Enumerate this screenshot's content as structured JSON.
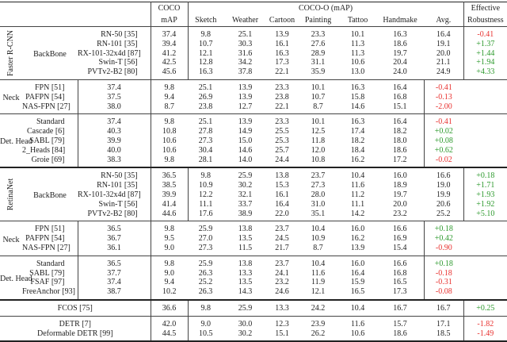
{
  "header": {
    "coco": [
      "COCO",
      "mAP"
    ],
    "coco_o": "COCO-O (mAP)",
    "columns": [
      "Sketch",
      "Weather",
      "Cartoon",
      "Painting",
      "Tattoo",
      "Handmake",
      "Avg."
    ],
    "er": [
      "Effective",
      "Robustness"
    ]
  },
  "colors": {
    "positive": "#2e9a2e",
    "negative": "#e8312f"
  },
  "sections": [
    {
      "detector": "Faster R-CNN",
      "groups": [
        {
          "name": "BackBone",
          "rows": [
            [
              "RN-50 [35]",
              "37.4",
              "9.8",
              "25.1",
              "13.9",
              "23.3",
              "10.1",
              "16.3",
              "16.4",
              "-0.41"
            ],
            [
              "RN-101 [35]",
              "39.4",
              "10.7",
              "30.3",
              "16.1",
              "27.6",
              "11.3",
              "18.6",
              "19.1",
              "+1.37"
            ],
            [
              "RX-101-32x4d [87]",
              "41.2",
              "12.1",
              "31.6",
              "16.3",
              "28.9",
              "11.3",
              "19.7",
              "20.0",
              "+1.44"
            ],
            [
              "Swin-T [56]",
              "42.5",
              "12.8",
              "34.2",
              "17.3",
              "31.1",
              "10.6",
              "20.4",
              "21.1",
              "+1.94"
            ],
            [
              "PVTv2-B2 [80]",
              "45.6",
              "16.3",
              "37.8",
              "22.1",
              "35.9",
              "13.0",
              "24.0",
              "24.9",
              "+4.33"
            ]
          ]
        },
        {
          "name": "Neck",
          "rows": [
            [
              "FPN [51]",
              "37.4",
              "9.8",
              "25.1",
              "13.9",
              "23.3",
              "10.1",
              "16.3",
              "16.4",
              "-0.41"
            ],
            [
              "PAFPN [54]",
              "37.5",
              "9.4",
              "26.9",
              "13.9",
              "23.8",
              "10.7",
              "15.8",
              "16.8",
              "-0.13"
            ],
            [
              "NAS-FPN [27]",
              "38.0",
              "8.7",
              "23.8",
              "12.7",
              "22.1",
              "8.7",
              "14.6",
              "15.1",
              "-2.00"
            ]
          ]
        },
        {
          "name": "Det. Head",
          "rows": [
            [
              "Standard",
              "37.4",
              "9.8",
              "25.1",
              "13.9",
              "23.3",
              "10.1",
              "16.3",
              "16.4",
              "-0.41"
            ],
            [
              "Cascade [6]",
              "40.3",
              "10.8",
              "27.8",
              "14.9",
              "25.5",
              "12.5",
              "17.4",
              "18.2",
              "+0.02"
            ],
            [
              "SABL [79]",
              "39.9",
              "10.6",
              "27.3",
              "15.0",
              "25.3",
              "11.8",
              "18.2",
              "18.0",
              "+0.08"
            ],
            [
              "2_Heads [84]",
              "40.0",
              "10.6",
              "30.4",
              "14.6",
              "25.7",
              "12.0",
              "18.4",
              "18.6",
              "+0.62"
            ],
            [
              "Groie [69]",
              "38.3",
              "9.8",
              "28.1",
              "14.0",
              "24.4",
              "10.8",
              "16.2",
              "17.2",
              "-0.02"
            ]
          ]
        }
      ]
    },
    {
      "detector": "RetinaNet",
      "groups": [
        {
          "name": "BackBone",
          "rows": [
            [
              "RN-50 [35]",
              "36.5",
              "9.8",
              "25.9",
              "13.8",
              "23.7",
              "10.4",
              "16.0",
              "16.6",
              "+0.18"
            ],
            [
              "RN-101 [35]",
              "38.5",
              "10.9",
              "30.2",
              "15.3",
              "27.3",
              "11.6",
              "18.9",
              "19.0",
              "+1.71"
            ],
            [
              "RX-101-32x4d [87]",
              "39.9",
              "12.2",
              "32.1",
              "16.1",
              "28.0",
              "11.2",
              "19.7",
              "19.9",
              "+1.93"
            ],
            [
              "Swin-T [56]",
              "41.4",
              "11.1",
              "33.7",
              "16.4",
              "31.0",
              "11.1",
              "20.0",
              "20.6",
              "+1.92"
            ],
            [
              "PVTv2-B2 [80]",
              "44.6",
              "17.6",
              "38.9",
              "22.0",
              "35.1",
              "14.2",
              "23.2",
              "25.2",
              "+5.10"
            ]
          ]
        },
        {
          "name": "Neck",
          "rows": [
            [
              "FPN [51]",
              "36.5",
              "9.8",
              "25.9",
              "13.8",
              "23.7",
              "10.4",
              "16.0",
              "16.6",
              "+0.18"
            ],
            [
              "PAFPN [54]",
              "36.7",
              "9.5",
              "27.0",
              "13.5",
              "24.5",
              "10.9",
              "16.2",
              "16.9",
              "+0.42"
            ],
            [
              "NAS-FPN [27]",
              "36.1",
              "9.0",
              "27.3",
              "11.5",
              "21.7",
              "8.7",
              "13.9",
              "15.4",
              "-0.90"
            ]
          ]
        },
        {
          "name": "Det. Head",
          "rows": [
            [
              "Standard",
              "36.5",
              "9.8",
              "25.9",
              "13.8",
              "23.7",
              "10.4",
              "16.0",
              "16.6",
              "+0.18"
            ],
            [
              "SABL [79]",
              "37.7",
              "9.0",
              "26.3",
              "13.3",
              "24.1",
              "11.6",
              "16.4",
              "16.8",
              "-0.18"
            ],
            [
              "FSAF [97]",
              "37.4",
              "9.4",
              "25.2",
              "13.5",
              "23.2",
              "11.9",
              "15.9",
              "16.5",
              "-0.31"
            ],
            [
              "FreeAnchor [93]",
              "38.7",
              "10.2",
              "26.3",
              "14.3",
              "24.6",
              "12.1",
              "16.5",
              "17.3",
              "-0.08"
            ]
          ]
        }
      ]
    }
  ],
  "standalone": [
    {
      "rows": [
        [
          "FCOS [75]",
          "36.6",
          "9.8",
          "25.9",
          "13.3",
          "24.2",
          "10.4",
          "16.7",
          "16.7",
          "+0.25"
        ]
      ]
    },
    {
      "rows": [
        [
          "DETR [7]",
          "42.0",
          "9.0",
          "30.0",
          "12.3",
          "23.9",
          "11.6",
          "15.7",
          "17.1",
          "-1.82"
        ],
        [
          "Deformable DETR [99]",
          "44.5",
          "10.5",
          "30.2",
          "15.1",
          "26.2",
          "10.6",
          "18.6",
          "18.5",
          "-1.49"
        ]
      ]
    }
  ]
}
